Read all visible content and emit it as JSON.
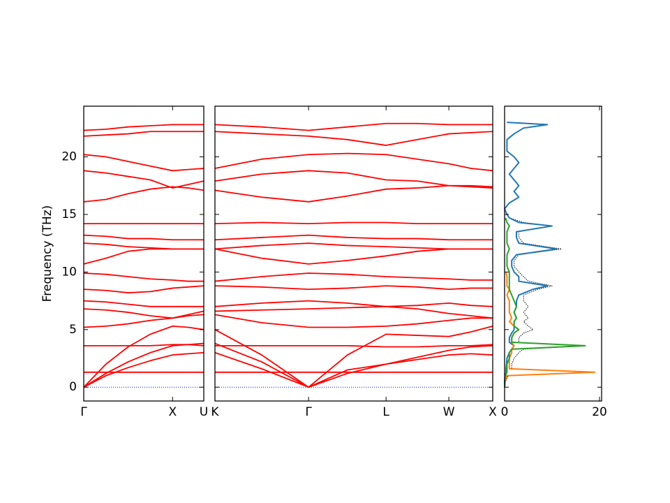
{
  "chart_data": [
    {
      "type": "line",
      "ylabel": "Frequency (THz)",
      "x": [
        0,
        0.185,
        0.37,
        0.555,
        0.74,
        0.87,
        1
      ],
      "xlim": [
        0,
        1
      ],
      "xticks": [
        {
          "value": 0,
          "label": "Γ"
        },
        {
          "value": 0.74,
          "label": "X"
        },
        {
          "value": 1,
          "label": "U"
        }
      ],
      "ylim": [
        -1.2,
        24.4
      ],
      "yticks": [
        0,
        5,
        10,
        15,
        20
      ],
      "show_ytick_labels": true,
      "series": [
        {
          "color": "#0000ff",
          "style": "dotted",
          "values": [
            0,
            0,
            0,
            0,
            0,
            0,
            0
          ]
        },
        {
          "color": "#ff0000",
          "values": [
            0,
            1.0,
            1.7,
            2.3,
            2.8,
            2.9,
            3.0
          ]
        },
        {
          "color": "#ff0000",
          "values": [
            0,
            1.2,
            2.2,
            3.0,
            3.6,
            3.7,
            3.8
          ]
        },
        {
          "color": "#ff0000",
          "values": [
            0,
            2.0,
            3.5,
            4.6,
            5.3,
            5.2,
            5.0
          ]
        },
        {
          "color": "#ff0000",
          "values": [
            1.3,
            1.3,
            1.3,
            1.3,
            1.3,
            1.3,
            1.3
          ]
        },
        {
          "color": "#ff0000",
          "values": [
            3.6,
            3.6,
            3.6,
            3.6,
            3.7,
            3.7,
            3.6
          ]
        },
        {
          "color": "#ff0000",
          "values": [
            5.2,
            5.3,
            5.5,
            5.8,
            6.0,
            6.2,
            6.3
          ]
        },
        {
          "color": "#ff0000",
          "values": [
            6.8,
            6.7,
            6.5,
            6.2,
            6.0,
            6.3,
            6.6
          ]
        },
        {
          "color": "#ff0000",
          "values": [
            7.5,
            7.4,
            7.2,
            7.0,
            7.0,
            7.0,
            7.0
          ]
        },
        {
          "color": "#ff0000",
          "values": [
            8.5,
            8.4,
            8.2,
            8.3,
            8.6,
            8.7,
            8.8
          ]
        },
        {
          "color": "#ff0000",
          "values": [
            9.9,
            9.8,
            9.6,
            9.4,
            9.3,
            9.2,
            9.2
          ]
        },
        {
          "color": "#ff0000",
          "values": [
            10.7,
            11.2,
            11.8,
            12.0,
            12.0,
            12.0,
            12.0
          ]
        },
        {
          "color": "#ff0000",
          "values": [
            12.5,
            12.4,
            12.2,
            12.1,
            12.0,
            12.0,
            12.0
          ]
        },
        {
          "color": "#ff0000",
          "values": [
            13.2,
            13.1,
            12.9,
            12.9,
            12.8,
            12.8,
            12.8
          ]
        },
        {
          "color": "#ff0000",
          "values": [
            14.2,
            14.2,
            14.2,
            14.2,
            14.2,
            14.2,
            14.2
          ]
        },
        {
          "color": "#ff0000",
          "values": [
            16.1,
            16.3,
            16.8,
            17.2,
            17.4,
            17.3,
            17.1
          ]
        },
        {
          "color": "#ff0000",
          "values": [
            18.8,
            18.6,
            18.3,
            18.0,
            17.3,
            17.6,
            17.9
          ]
        },
        {
          "color": "#ff0000",
          "values": [
            20.2,
            20.0,
            19.6,
            19.2,
            18.8,
            18.9,
            19.0
          ]
        },
        {
          "color": "#ff0000",
          "values": [
            21.8,
            21.9,
            22.0,
            22.2,
            22.2,
            22.2,
            22.2
          ]
        },
        {
          "color": "#ff0000",
          "values": [
            22.3,
            22.4,
            22.6,
            22.7,
            22.8,
            22.8,
            22.8
          ]
        }
      ]
    },
    {
      "type": "line",
      "x": [
        0,
        0.168,
        0.337,
        0.477,
        0.616,
        0.729,
        0.842,
        0.921,
        1
      ],
      "xlim": [
        0,
        1
      ],
      "xticks": [
        {
          "value": 0,
          "label": "K"
        },
        {
          "value": 0.337,
          "label": "Γ"
        },
        {
          "value": 0.616,
          "label": "L"
        },
        {
          "value": 0.842,
          "label": "W"
        },
        {
          "value": 1,
          "label": "X"
        }
      ],
      "ylim": [
        -1.2,
        24.4
      ],
      "yticks": [
        0,
        5,
        10,
        15,
        20
      ],
      "show_ytick_labels": false,
      "series": [
        {
          "color": "#0000ff",
          "style": "dotted",
          "values": [
            0,
            0,
            0,
            0,
            0,
            0,
            0,
            0,
            0
          ]
        },
        {
          "color": "#ff0000",
          "values": [
            3.0,
            1.6,
            0,
            1.2,
            2.0,
            2.4,
            2.8,
            2.9,
            2.8
          ]
        },
        {
          "color": "#ff0000",
          "values": [
            3.8,
            2.2,
            0,
            1.5,
            2.0,
            2.6,
            3.2,
            3.5,
            3.6
          ]
        },
        {
          "color": "#ff0000",
          "values": [
            5.0,
            2.8,
            0,
            2.8,
            4.6,
            4.5,
            4.4,
            4.8,
            5.3
          ]
        },
        {
          "color": "#ff0000",
          "values": [
            1.3,
            1.3,
            1.3,
            1.3,
            1.3,
            1.3,
            1.3,
            1.3,
            1.3
          ]
        },
        {
          "color": "#ff0000",
          "values": [
            3.6,
            3.6,
            3.6,
            3.6,
            3.5,
            3.5,
            3.6,
            3.6,
            3.7
          ]
        },
        {
          "color": "#ff0000",
          "values": [
            6.3,
            5.6,
            5.2,
            5.2,
            5.3,
            5.5,
            5.8,
            6.0,
            6.0
          ]
        },
        {
          "color": "#ff0000",
          "values": [
            6.6,
            6.7,
            6.8,
            6.9,
            7.0,
            6.8,
            6.4,
            6.2,
            6.0
          ]
        },
        {
          "color": "#ff0000",
          "values": [
            7.0,
            7.3,
            7.5,
            7.3,
            7.0,
            7.1,
            7.3,
            7.1,
            7.0
          ]
        },
        {
          "color": "#ff0000",
          "values": [
            8.8,
            8.7,
            8.5,
            8.6,
            8.8,
            8.7,
            8.5,
            8.6,
            8.6
          ]
        },
        {
          "color": "#ff0000",
          "values": [
            9.2,
            9.6,
            9.9,
            9.8,
            9.6,
            9.5,
            9.4,
            9.3,
            9.3
          ]
        },
        {
          "color": "#ff0000",
          "values": [
            12.0,
            11.2,
            10.7,
            11.0,
            11.4,
            11.8,
            12.0,
            12.0,
            12.0
          ]
        },
        {
          "color": "#ff0000",
          "values": [
            12.0,
            12.3,
            12.5,
            12.3,
            12.2,
            12.1,
            12.0,
            12.0,
            12.0
          ]
        },
        {
          "color": "#ff0000",
          "values": [
            12.8,
            13.0,
            13.2,
            13.0,
            12.9,
            12.9,
            12.8,
            12.8,
            12.8
          ]
        },
        {
          "color": "#ff0000",
          "values": [
            14.2,
            14.3,
            14.2,
            14.3,
            14.3,
            14.2,
            14.2,
            14.2,
            14.2
          ]
        },
        {
          "color": "#ff0000",
          "values": [
            17.1,
            16.5,
            16.1,
            16.6,
            17.2,
            17.3,
            17.5,
            17.5,
            17.4
          ]
        },
        {
          "color": "#ff0000",
          "values": [
            17.9,
            18.5,
            18.8,
            18.6,
            18.0,
            17.9,
            17.5,
            17.4,
            17.3
          ]
        },
        {
          "color": "#ff0000",
          "values": [
            19.0,
            19.8,
            20.2,
            20.3,
            20.2,
            19.8,
            19.4,
            19.0,
            18.8
          ]
        },
        {
          "color": "#ff0000",
          "values": [
            22.2,
            22.0,
            21.8,
            21.5,
            21.0,
            21.5,
            22.0,
            22.1,
            22.2
          ]
        },
        {
          "color": "#ff0000",
          "values": [
            22.8,
            22.6,
            22.3,
            22.6,
            22.9,
            22.9,
            22.8,
            22.8,
            22.8
          ]
        }
      ]
    },
    {
      "type": "line",
      "orientation": "horizontal",
      "y": [
        0,
        0.5,
        1,
        1.3,
        1.6,
        2,
        2.5,
        3,
        3.3,
        3.6,
        3.9,
        4.3,
        4.7,
        5,
        5.3,
        5.7,
        6,
        6.5,
        7,
        7.5,
        8,
        8.5,
        8.8,
        9.2,
        9.6,
        10,
        10.5,
        11,
        11.5,
        12,
        12.5,
        13,
        13.5,
        14,
        14.3,
        14.7,
        15,
        15.5,
        16,
        16.5,
        17,
        17.5,
        18,
        18.5,
        19,
        19.5,
        20,
        20.5,
        21,
        21.5,
        22,
        22.5,
        22.8,
        23
      ],
      "xlim": [
        0,
        20.44
      ],
      "xticks": [
        0,
        20
      ],
      "ylim": [
        -1.2,
        24.4
      ],
      "yticks": [
        0,
        5,
        10,
        15,
        20
      ],
      "show_ytick_labels": false,
      "series": [
        {
          "color": "#000000",
          "style": "dotted",
          "values": [
            0,
            0.2,
            0.8,
            19,
            1.5,
            1.5,
            2,
            3,
            4,
            17,
            3,
            3,
            4,
            6,
            5,
            4,
            5,
            4,
            5,
            4,
            4,
            7,
            10,
            5,
            4,
            3,
            2,
            2,
            3,
            12,
            4,
            3,
            3,
            10,
            4,
            1,
            0.5,
            0,
            1,
            3,
            2,
            3,
            2,
            1,
            2,
            3,
            2,
            0.5,
            0.5,
            0.5,
            2,
            4,
            9,
            0.5
          ]
        },
        {
          "color": "#1f77b4",
          "values": [
            0,
            0,
            0.1,
            0.3,
            0.3,
            0.4,
            0.5,
            1,
            1.5,
            2,
            1,
            1,
            1.5,
            2,
            2,
            2,
            2.5,
            2,
            2.5,
            2.5,
            3,
            6,
            9,
            3,
            3,
            2,
            1.5,
            1.5,
            2.5,
            11,
            3,
            2.5,
            2.5,
            10,
            3,
            1,
            0.5,
            0,
            1,
            3,
            2,
            3,
            2,
            1,
            2,
            3,
            2,
            0.5,
            0.5,
            0.5,
            2,
            4,
            9,
            0.5
          ]
        },
        {
          "color": "#ff7f0e",
          "values": [
            0,
            0.1,
            0.5,
            19,
            1,
            1,
            1,
            1.5,
            1.5,
            2,
            1.5,
            1.5,
            2,
            3,
            2,
            1,
            1.5,
            1,
            1,
            1,
            0.5,
            1,
            0.5,
            0.5,
            0.5,
            0.3,
            null,
            null,
            null,
            null,
            null,
            null,
            null,
            null,
            null,
            null,
            null,
            null,
            null,
            null,
            null,
            null,
            null,
            null,
            null,
            null,
            null,
            null,
            null,
            null,
            null,
            null,
            null,
            null
          ]
        },
        {
          "color": "#2ca02c",
          "values": [
            0,
            0.1,
            0.2,
            0.5,
            0.5,
            0.5,
            1,
            1,
            1.5,
            17,
            1.5,
            1.5,
            2,
            3,
            2,
            2,
            2.5,
            2,
            2.5,
            2,
            1.5,
            1,
            1,
            1,
            1,
            1,
            0.5,
            0.5,
            0.5,
            1,
            0.5,
            0.5,
            0.5,
            1,
            0.5,
            0.2,
            null,
            null,
            null,
            null,
            null,
            null,
            null,
            null,
            null,
            null,
            null,
            null,
            null,
            null,
            null,
            null,
            null,
            null
          ]
        }
      ]
    }
  ]
}
